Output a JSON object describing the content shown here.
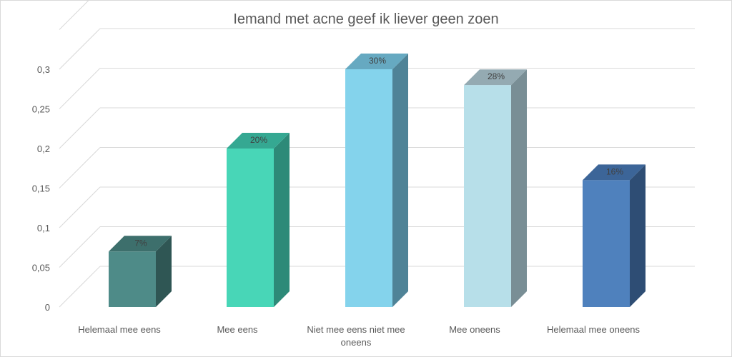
{
  "chart_data": {
    "type": "bar",
    "title": "Iemand met acne geef ik liever geen zoen",
    "categories": [
      "Helemaal mee eens",
      "Mee eens",
      "Niet mee eens niet mee oneens",
      "Mee oneens",
      "Helemaal  mee oneens"
    ],
    "category_lines": [
      [
        "Helemaal mee eens"
      ],
      [
        "Mee eens"
      ],
      [
        "Niet mee eens niet mee",
        "oneens"
      ],
      [
        "Mee oneens"
      ],
      [
        "Helemaal  mee oneens"
      ]
    ],
    "values": [
      0.07,
      0.2,
      0.3,
      0.28,
      0.16
    ],
    "data_labels": [
      "7%",
      "20%",
      "30%",
      "28%",
      "16%"
    ],
    "yticks": [
      "0",
      "0,05",
      "0,1",
      "0,15",
      "0,2",
      "0,25",
      "0,3"
    ],
    "ylim": [
      0,
      0.33
    ],
    "grid": true,
    "colors": [
      {
        "front": "#4e8b88",
        "side": "#2f5654",
        "top": "#3d6f6c"
      },
      {
        "front": "#48d6b7",
        "side": "#2d8a78",
        "top": "#35a892"
      },
      {
        "front": "#84d3ec",
        "side": "#4f8397",
        "top": "#66a9c1"
      },
      {
        "front": "#b7dfe9",
        "side": "#798e95",
        "top": "#94aab2"
      },
      {
        "front": "#4f81bd",
        "side": "#2e4d74",
        "top": "#3c6598"
      }
    ]
  }
}
